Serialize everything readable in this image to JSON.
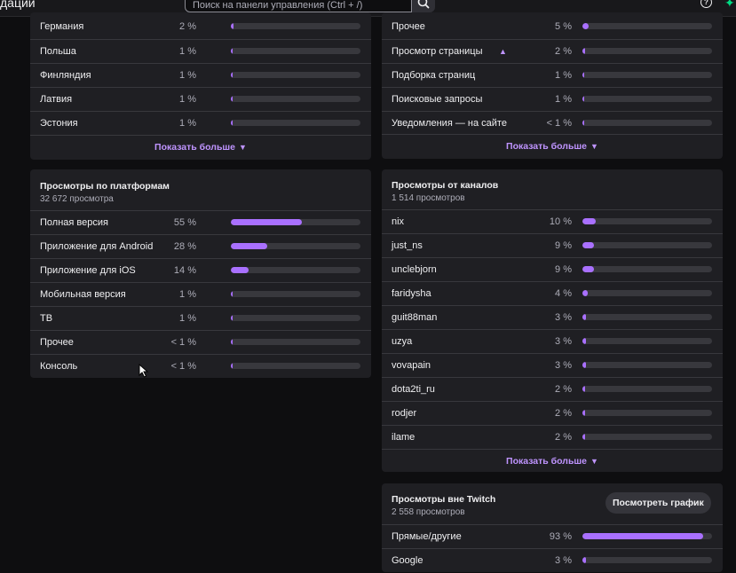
{
  "header": {
    "title": "дации",
    "search_placeholder": "Поиск на панели управления (Ctrl + /)",
    "help_icon": "?",
    "sparkle_icon": "✦"
  },
  "countries": {
    "rows": [
      {
        "label": "Германия",
        "pct": "2 %",
        "value": 2
      },
      {
        "label": "Польша",
        "pct": "1 %",
        "value": 1
      },
      {
        "label": "Финляндия",
        "pct": "1 %",
        "value": 1
      },
      {
        "label": "Латвия",
        "pct": "1 %",
        "value": 1
      },
      {
        "label": "Эстония",
        "pct": "1 %",
        "value": 1
      }
    ],
    "show_more": "Показать больше"
  },
  "sources": {
    "rows": [
      {
        "label": "Прочее",
        "pct": "5 %",
        "value": 5
      },
      {
        "label": "Просмотр страницы",
        "pct": "2 %",
        "value": 2
      },
      {
        "label": "Подборка страниц",
        "pct": "1 %",
        "value": 1
      },
      {
        "label": "Поисковые запросы",
        "pct": "1 %",
        "value": 1
      },
      {
        "label": "Уведомления — на сайте",
        "pct": "< 1 %",
        "value": 0.5
      }
    ],
    "show_more": "Показать больше"
  },
  "platforms": {
    "title": "Просмотры по платформам",
    "subtitle": "32 672 просмотра",
    "rows": [
      {
        "label": "Полная версия",
        "pct": "55 %",
        "value": 55
      },
      {
        "label": "Приложение для Android",
        "pct": "28 %",
        "value": 28
      },
      {
        "label": "Приложение для iOS",
        "pct": "14 %",
        "value": 14
      },
      {
        "label": "Мобильная версия",
        "pct": "1 %",
        "value": 1
      },
      {
        "label": "ТВ",
        "pct": "1 %",
        "value": 1
      },
      {
        "label": "Прочее",
        "pct": "< 1 %",
        "value": 0.5
      },
      {
        "label": "Консоль",
        "pct": "< 1 %",
        "value": 0.5
      }
    ]
  },
  "channels": {
    "title": "Просмотры от каналов",
    "subtitle": "1 514 просмотров",
    "rows": [
      {
        "label": "nix",
        "pct": "10 %",
        "value": 10
      },
      {
        "label": "just_ns",
        "pct": "9 %",
        "value": 9
      },
      {
        "label": "unclebjorn",
        "pct": "9 %",
        "value": 9
      },
      {
        "label": "faridysha",
        "pct": "4 %",
        "value": 4
      },
      {
        "label": "guit88man",
        "pct": "3 %",
        "value": 3
      },
      {
        "label": "uzya",
        "pct": "3 %",
        "value": 3
      },
      {
        "label": "vovapain",
        "pct": "3 %",
        "value": 3
      },
      {
        "label": "dota2ti_ru",
        "pct": "2 %",
        "value": 2
      },
      {
        "label": "rodjer",
        "pct": "2 %",
        "value": 2
      },
      {
        "label": "ilame",
        "pct": "2 %",
        "value": 2
      }
    ],
    "show_more": "Показать больше"
  },
  "external": {
    "title": "Просмотры вне Twitch",
    "subtitle": "2 558 просмотров",
    "graph_button": "Посмотреть график",
    "rows": [
      {
        "label": "Прямые/другие",
        "pct": "93 %",
        "value": 93
      },
      {
        "label": "Google",
        "pct": "3 %",
        "value": 3
      }
    ]
  },
  "colors": {
    "accent": "#a970ff",
    "link": "#bf94ff",
    "card": "#1f1f23",
    "background": "#0e0e10"
  }
}
